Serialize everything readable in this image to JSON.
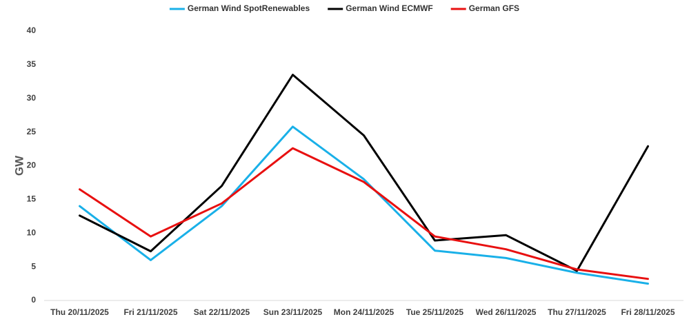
{
  "chart_data": {
    "type": "line",
    "title": "",
    "xlabel": "",
    "ylabel": "GW",
    "ylim": [
      0,
      40
    ],
    "yticks": [
      0,
      5,
      10,
      15,
      20,
      25,
      30,
      35,
      40
    ],
    "grid": false,
    "legend_position": "top",
    "categories": [
      "Thu 20/11/2025",
      "Fri 21/11/2025",
      "Sat 22/11/2025",
      "Sun 23/11/2025",
      "Mon 24/11/2025",
      "Tue 25/11/2025",
      "Wed 26/11/2025",
      "Thu 27/11/2025",
      "Fri 28/11/2025"
    ],
    "series": [
      {
        "name": "German Wind SpotRenewables",
        "color": "#19b0e8",
        "values": [
          14.0,
          6.0,
          14.0,
          25.8,
          18.0,
          7.4,
          6.3,
          4.1,
          2.5
        ]
      },
      {
        "name": "German Wind ECMWF",
        "color": "#000000",
        "values": [
          12.6,
          7.3,
          17.0,
          33.5,
          24.5,
          8.9,
          9.7,
          4.4,
          22.9
        ]
      },
      {
        "name": "German GFS",
        "color": "#e81010",
        "values": [
          16.5,
          9.5,
          14.4,
          22.6,
          17.6,
          9.5,
          7.6,
          4.6,
          3.2
        ]
      }
    ]
  }
}
